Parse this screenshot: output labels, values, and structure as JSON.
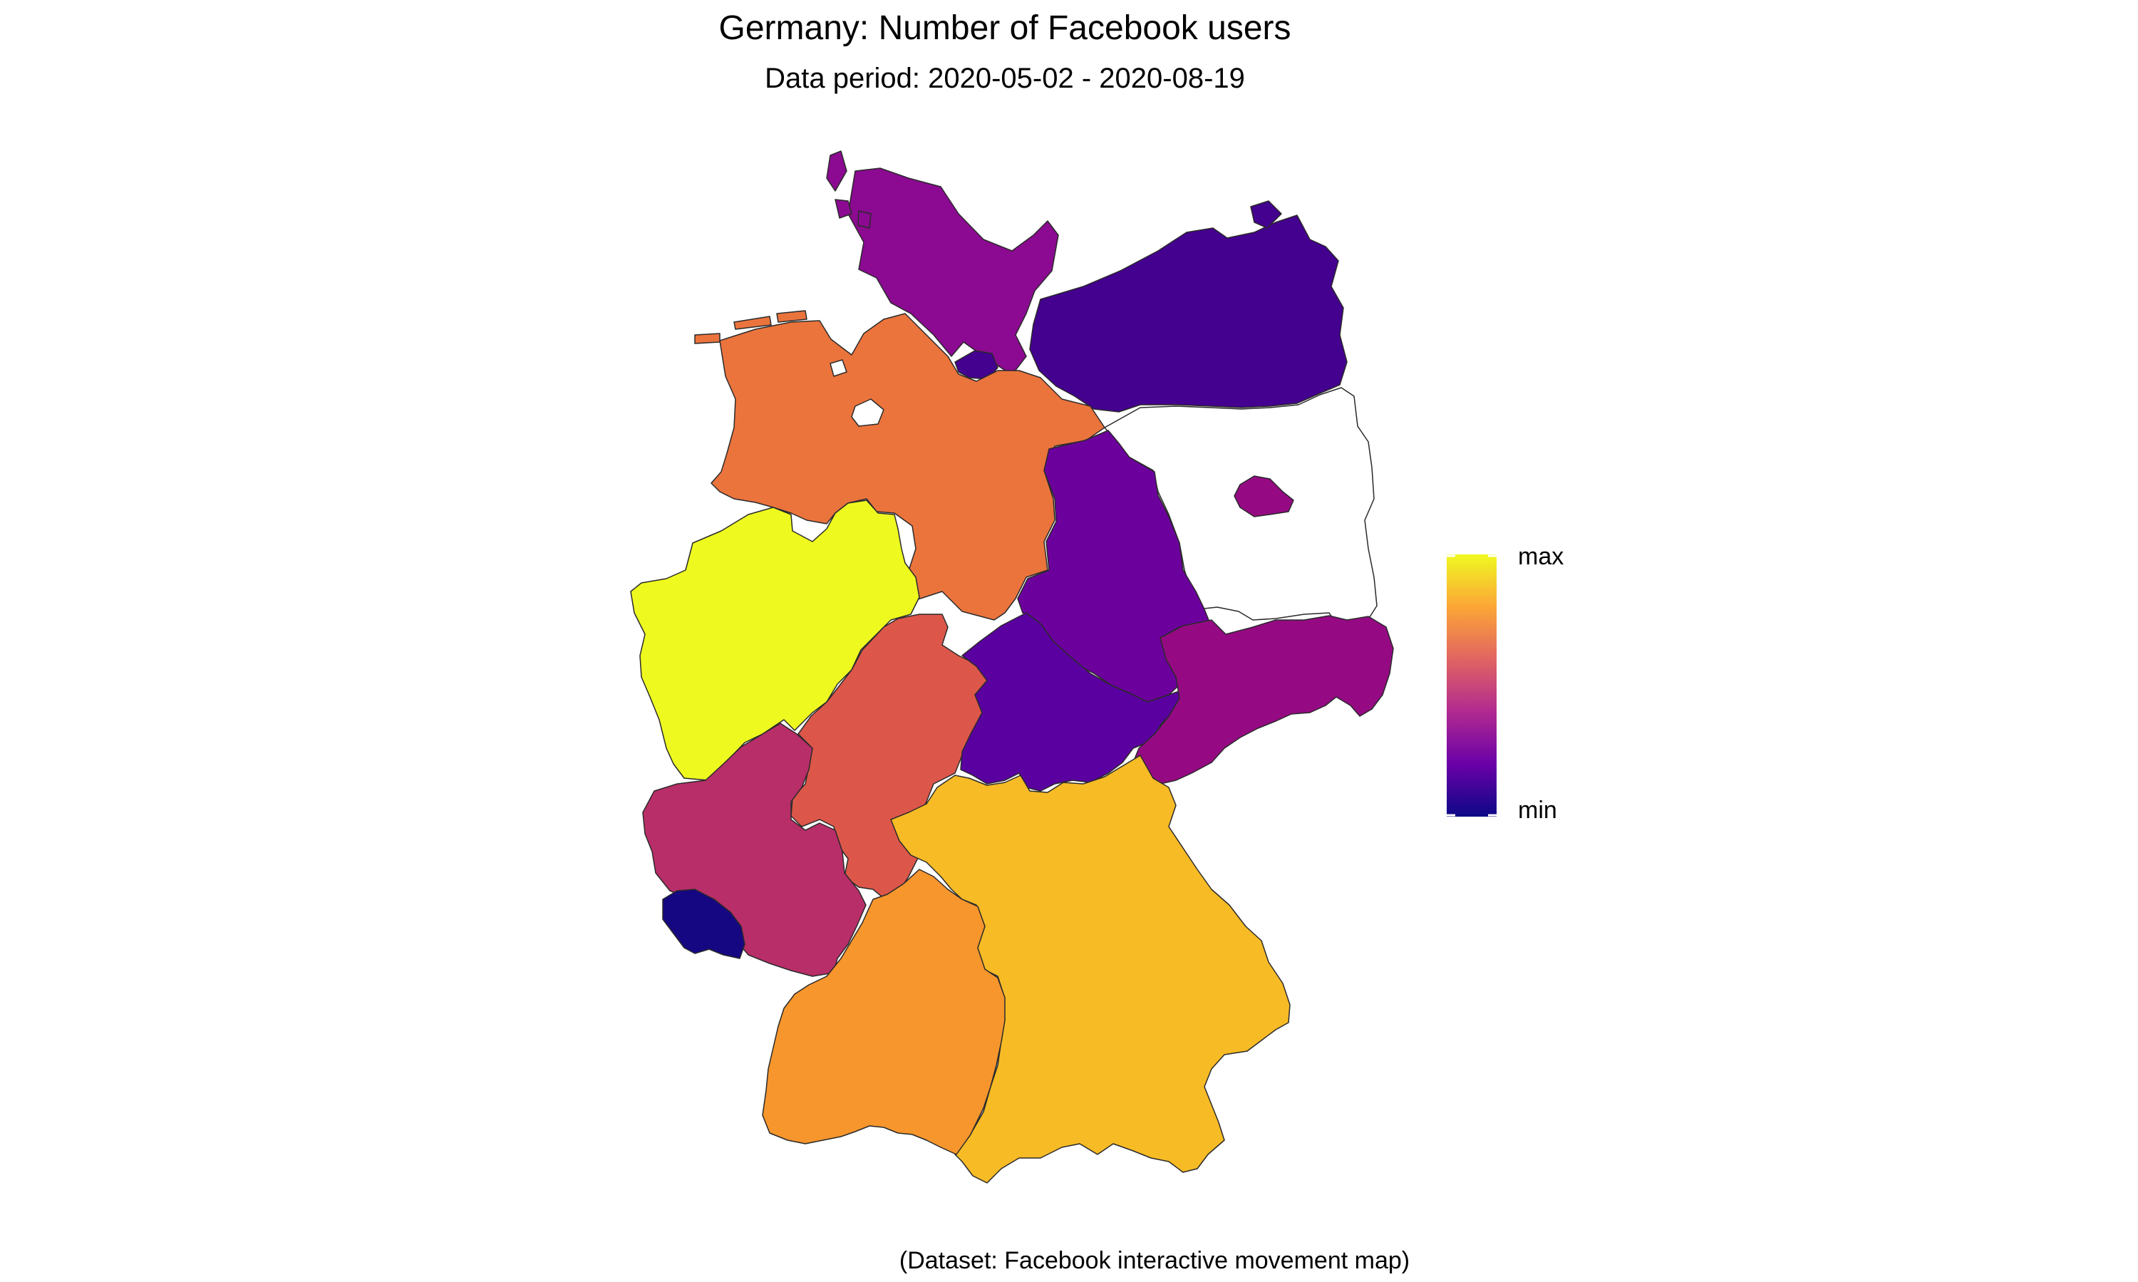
{
  "header": {
    "title": "Germany: Number of Facebook users",
    "subtitle": "Data period: 2020-05-02 - 2020-08-19"
  },
  "caption": "(Dataset: Facebook interactive movement map)",
  "legend": {
    "max_label": "max",
    "min_label": "min",
    "gradient": [
      "#0d0887",
      "#6a00a8",
      "#b12a90",
      "#e16462",
      "#fca636",
      "#f0f921"
    ]
  },
  "colors": {
    "yellow": "#eefa1f",
    "orange_light": "#f7bb26",
    "orange": "#f6962d",
    "orange_red": "#eb743d",
    "red": "#dc574a",
    "magenta": "#b82e68",
    "purple_magenta": "#950a83",
    "purple": "#8b0a91",
    "violet": "#6c009d",
    "indigo_violet": "#5a00a0",
    "indigo": "#44008f",
    "navy": "#150782",
    "missing": "#ffffff"
  },
  "regions": [
    {
      "key": "nrw",
      "level": "yellow"
    },
    {
      "key": "bayern",
      "level": "orange_light"
    },
    {
      "key": "bw",
      "level": "orange"
    },
    {
      "key": "niedersachsen",
      "level": "orange_red"
    },
    {
      "key": "hessen",
      "level": "red"
    },
    {
      "key": "rlp",
      "level": "magenta"
    },
    {
      "key": "sachsen",
      "level": "purple_magenta"
    },
    {
      "key": "berlin",
      "level": "purple_magenta"
    },
    {
      "key": "sh",
      "level": "purple"
    },
    {
      "key": "sachsen_anhalt",
      "level": "violet"
    },
    {
      "key": "thueringen",
      "level": "indigo_violet"
    },
    {
      "key": "mv",
      "level": "indigo"
    },
    {
      "key": "hamburg",
      "level": "indigo"
    },
    {
      "key": "saarland",
      "level": "navy"
    },
    {
      "key": "brandenburg",
      "level": "missing"
    },
    {
      "key": "bremen",
      "level": "missing"
    }
  ]
}
